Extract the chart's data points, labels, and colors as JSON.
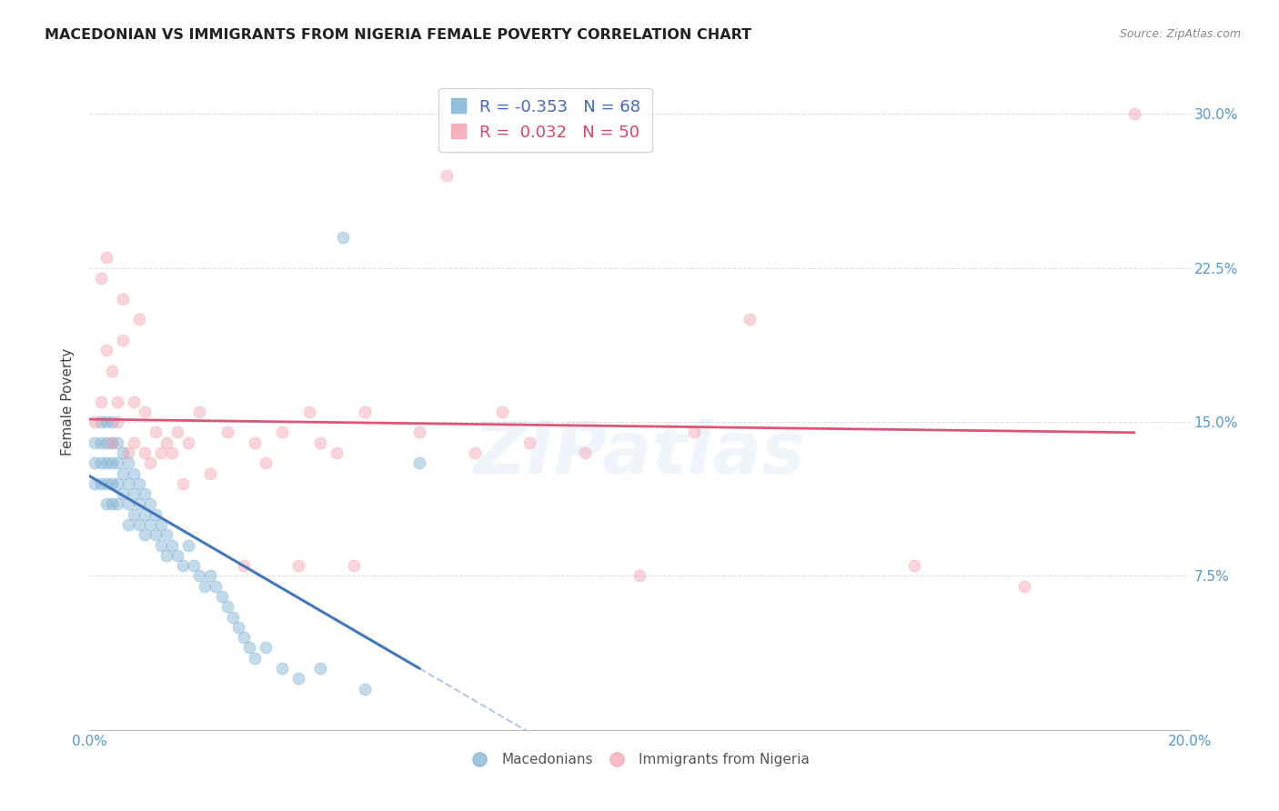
{
  "title": "MACEDONIAN VS IMMIGRANTS FROM NIGERIA FEMALE POVERTY CORRELATION CHART",
  "source": "Source: ZipAtlas.com",
  "ylabel": "Female Poverty",
  "xlim": [
    0.0,
    0.2
  ],
  "ylim": [
    0.0,
    0.32
  ],
  "yticks": [
    0.075,
    0.15,
    0.225,
    0.3
  ],
  "ytick_labels": [
    "7.5%",
    "15.0%",
    "22.5%",
    "30.0%"
  ],
  "xticks": [
    0.0,
    0.05,
    0.1,
    0.15,
    0.2
  ],
  "xtick_labels": [
    "0.0%",
    "",
    "",
    "",
    "20.0%"
  ],
  "macedonian_color": "#7BAFD4",
  "nigeria_color": "#F4A0B0",
  "macedonian_line_color": "#4477BB",
  "nigeria_line_color": "#DD5577",
  "background_color": "#FFFFFF",
  "grid_color": "#DDDDDD",
  "R_macedonian": -0.353,
  "N_macedonian": 68,
  "R_nigeria": 0.032,
  "N_nigeria": 50,
  "legend_label_1": "Macedonians",
  "legend_label_2": "Immigrants from Nigeria",
  "watermark": "ZIPatlas",
  "macedonian_x": [
    0.001,
    0.001,
    0.001,
    0.002,
    0.002,
    0.002,
    0.002,
    0.003,
    0.003,
    0.003,
    0.003,
    0.003,
    0.004,
    0.004,
    0.004,
    0.004,
    0.004,
    0.005,
    0.005,
    0.005,
    0.005,
    0.006,
    0.006,
    0.006,
    0.007,
    0.007,
    0.007,
    0.007,
    0.008,
    0.008,
    0.008,
    0.009,
    0.009,
    0.009,
    0.01,
    0.01,
    0.01,
    0.011,
    0.011,
    0.012,
    0.012,
    0.013,
    0.013,
    0.014,
    0.014,
    0.015,
    0.016,
    0.017,
    0.018,
    0.019,
    0.02,
    0.021,
    0.022,
    0.023,
    0.024,
    0.025,
    0.026,
    0.027,
    0.028,
    0.029,
    0.03,
    0.032,
    0.035,
    0.038,
    0.042,
    0.046,
    0.05,
    0.06
  ],
  "macedonian_y": [
    0.14,
    0.13,
    0.12,
    0.15,
    0.14,
    0.13,
    0.12,
    0.15,
    0.14,
    0.13,
    0.12,
    0.11,
    0.15,
    0.14,
    0.13,
    0.12,
    0.11,
    0.14,
    0.13,
    0.12,
    0.11,
    0.135,
    0.125,
    0.115,
    0.13,
    0.12,
    0.11,
    0.1,
    0.125,
    0.115,
    0.105,
    0.12,
    0.11,
    0.1,
    0.115,
    0.105,
    0.095,
    0.11,
    0.1,
    0.105,
    0.095,
    0.1,
    0.09,
    0.095,
    0.085,
    0.09,
    0.085,
    0.08,
    0.09,
    0.08,
    0.075,
    0.07,
    0.075,
    0.07,
    0.065,
    0.06,
    0.055,
    0.05,
    0.045,
    0.04,
    0.035,
    0.04,
    0.03,
    0.025,
    0.03,
    0.24,
    0.02,
    0.13
  ],
  "nigeria_x": [
    0.001,
    0.002,
    0.002,
    0.003,
    0.003,
    0.004,
    0.004,
    0.005,
    0.005,
    0.006,
    0.006,
    0.007,
    0.008,
    0.008,
    0.009,
    0.01,
    0.01,
    0.011,
    0.012,
    0.013,
    0.014,
    0.015,
    0.016,
    0.017,
    0.018,
    0.02,
    0.022,
    0.025,
    0.028,
    0.03,
    0.032,
    0.035,
    0.038,
    0.04,
    0.042,
    0.045,
    0.048,
    0.05,
    0.06,
    0.065,
    0.07,
    0.075,
    0.08,
    0.09,
    0.1,
    0.11,
    0.12,
    0.15,
    0.17,
    0.19
  ],
  "nigeria_y": [
    0.15,
    0.22,
    0.16,
    0.23,
    0.185,
    0.175,
    0.14,
    0.16,
    0.15,
    0.21,
    0.19,
    0.135,
    0.16,
    0.14,
    0.2,
    0.155,
    0.135,
    0.13,
    0.145,
    0.135,
    0.14,
    0.135,
    0.145,
    0.12,
    0.14,
    0.155,
    0.125,
    0.145,
    0.08,
    0.14,
    0.13,
    0.145,
    0.08,
    0.155,
    0.14,
    0.135,
    0.08,
    0.155,
    0.145,
    0.27,
    0.135,
    0.155,
    0.14,
    0.135,
    0.075,
    0.145,
    0.2,
    0.08,
    0.07,
    0.3
  ]
}
